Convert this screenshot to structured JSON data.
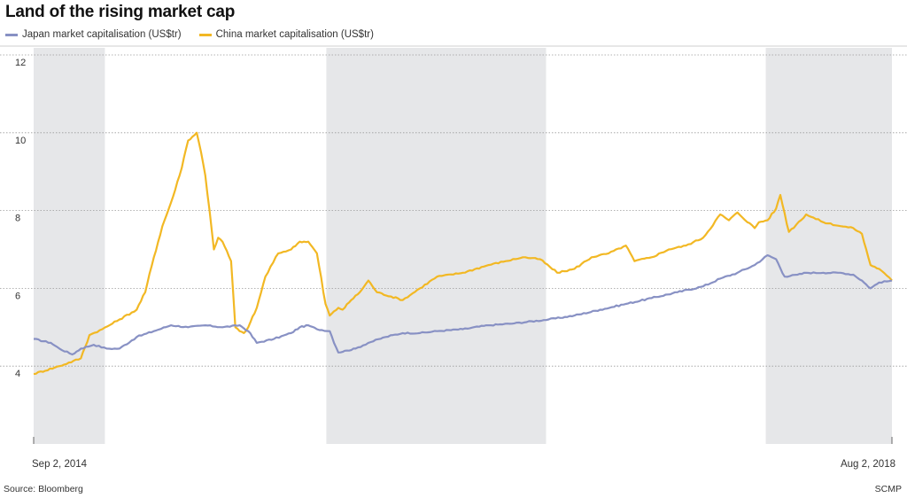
{
  "source": "Source: Bloomberg",
  "credit": "SCMP",
  "colors": {
    "japan": "#8891c4",
    "china": "#f2b824",
    "shade": "#e6e7e9",
    "grid": "#9a9a9a"
  },
  "chart_data": {
    "type": "line",
    "title": "Land of the rising market cap",
    "xlabel": "",
    "ylabel": "",
    "x_start": "Sep 2, 2014",
    "x_end": "Aug 2, 2018",
    "x_tick_labels": [
      "Sep 2, 2014",
      "Aug 2, 2018"
    ],
    "ylim": [
      2,
      12
    ],
    "y_ticks": [
      4,
      6,
      8,
      10,
      12
    ],
    "shaded_periods": [
      [
        0,
        0.083
      ],
      [
        0.341,
        0.597
      ],
      [
        0.853,
        1.0
      ]
    ],
    "series": [
      {
        "name": "Japan market capitalisation (US$tr)",
        "x": [
          0,
          0.02,
          0.03,
          0.045,
          0.055,
          0.07,
          0.085,
          0.1,
          0.12,
          0.14,
          0.16,
          0.18,
          0.2,
          0.22,
          0.24,
          0.25,
          0.26,
          0.28,
          0.3,
          0.31,
          0.32,
          0.33,
          0.345,
          0.355,
          0.365,
          0.375,
          0.39,
          0.41,
          0.43,
          0.45,
          0.47,
          0.5,
          0.53,
          0.56,
          0.6,
          0.63,
          0.66,
          0.69,
          0.72,
          0.75,
          0.78,
          0.8,
          0.82,
          0.84,
          0.855,
          0.865,
          0.875,
          0.89,
          0.9,
          0.92,
          0.94,
          0.955,
          0.965,
          0.975,
          0.985,
          1.0
        ],
        "values": [
          4.7,
          4.6,
          4.45,
          4.3,
          4.45,
          4.55,
          4.45,
          4.45,
          4.75,
          4.9,
          5.05,
          5.0,
          5.05,
          5.0,
          5.05,
          4.9,
          4.6,
          4.7,
          4.85,
          5.0,
          5.05,
          4.95,
          4.9,
          4.35,
          4.4,
          4.45,
          4.6,
          4.75,
          4.85,
          4.85,
          4.9,
          4.95,
          5.05,
          5.1,
          5.2,
          5.3,
          5.45,
          5.6,
          5.75,
          5.9,
          6.05,
          6.25,
          6.4,
          6.6,
          6.85,
          6.75,
          6.3,
          6.35,
          6.4,
          6.4,
          6.4,
          6.35,
          6.2,
          6.0,
          6.15,
          6.2
        ]
      },
      {
        "name": "China market capitalisation (US$tr)",
        "x": [
          0,
          0.03,
          0.055,
          0.065,
          0.08,
          0.1,
          0.12,
          0.13,
          0.14,
          0.15,
          0.16,
          0.17,
          0.18,
          0.19,
          0.195,
          0.2,
          0.205,
          0.21,
          0.215,
          0.22,
          0.23,
          0.235,
          0.24,
          0.245,
          0.25,
          0.26,
          0.27,
          0.285,
          0.3,
          0.31,
          0.32,
          0.33,
          0.34,
          0.345,
          0.355,
          0.36,
          0.37,
          0.38,
          0.39,
          0.4,
          0.43,
          0.45,
          0.47,
          0.5,
          0.53,
          0.55,
          0.57,
          0.59,
          0.61,
          0.63,
          0.65,
          0.67,
          0.69,
          0.7,
          0.72,
          0.74,
          0.76,
          0.78,
          0.8,
          0.81,
          0.82,
          0.84,
          0.845,
          0.855,
          0.865,
          0.87,
          0.88,
          0.9,
          0.92,
          0.94,
          0.955,
          0.965,
          0.975,
          0.985,
          1.0
        ],
        "values": [
          3.8,
          4.0,
          4.2,
          4.8,
          4.95,
          5.2,
          5.45,
          5.9,
          6.8,
          7.6,
          8.2,
          8.9,
          9.8,
          10.0,
          9.5,
          8.9,
          8.0,
          7.0,
          7.3,
          7.2,
          6.7,
          5.0,
          4.9,
          4.85,
          5.0,
          5.5,
          6.3,
          6.9,
          7.0,
          7.2,
          7.2,
          6.9,
          5.6,
          5.3,
          5.5,
          5.45,
          5.7,
          5.9,
          6.2,
          5.9,
          5.7,
          6.0,
          6.3,
          6.4,
          6.6,
          6.7,
          6.8,
          6.75,
          6.4,
          6.5,
          6.8,
          6.9,
          7.1,
          6.7,
          6.8,
          7.0,
          7.1,
          7.3,
          7.9,
          7.75,
          7.95,
          7.55,
          7.7,
          7.75,
          8.05,
          8.4,
          7.45,
          7.9,
          7.7,
          7.6,
          7.55,
          7.4,
          6.6,
          6.5,
          6.2
        ]
      }
    ]
  }
}
